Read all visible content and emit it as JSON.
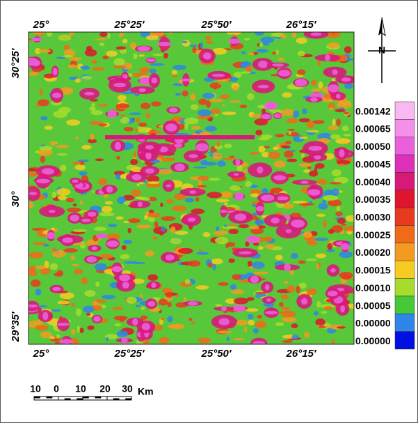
{
  "map": {
    "top_axis": [
      "25°",
      "25°25′",
      "25°50′",
      "26°15′"
    ],
    "bottom_axis": [
      "25°",
      "25°25′",
      "25°50′",
      "26°15′"
    ],
    "left_axis": [
      "30°25′",
      "30°",
      "29°35′"
    ],
    "north": "N",
    "legend": [
      {
        "label": "0.00142",
        "color": "#f9b8f2"
      },
      {
        "label": "0.00065",
        "color": "#f590ea"
      },
      {
        "label": "0.00050",
        "color": "#ec5fdc"
      },
      {
        "label": "0.00045",
        "color": "#dc30b8"
      },
      {
        "label": "0.00040",
        "color": "#d8197a"
      },
      {
        "label": "0.00035",
        "color": "#e0142c"
      },
      {
        "label": "0.00030",
        "color": "#ea3a1e"
      },
      {
        "label": "0.00025",
        "color": "#f06a18"
      },
      {
        "label": "0.00020",
        "color": "#f39a22"
      },
      {
        "label": "0.00015",
        "color": "#f6cc22"
      },
      {
        "label": "0.00010",
        "color": "#a8dc2c"
      },
      {
        "label": "0.00005",
        "color": "#46c838"
      },
      {
        "label": "0.00000",
        "color": "#2e86e8"
      },
      {
        "label": "0.00000",
        "color": "#0010e0"
      }
    ],
    "scale_bar": {
      "labels": [
        "10",
        "0",
        "10",
        "20",
        "30"
      ],
      "unit": "Km"
    }
  }
}
